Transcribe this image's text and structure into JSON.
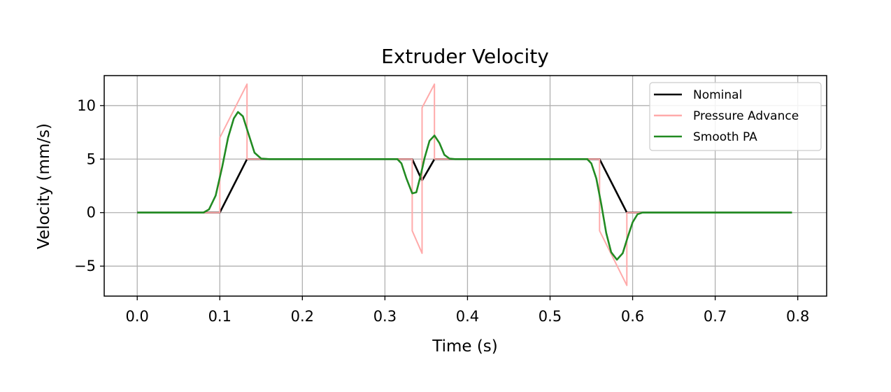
{
  "chart_data": {
    "type": "line",
    "title": "Extruder Velocity",
    "xlabel": "Time (s)",
    "ylabel": "Velocity (mm/s)",
    "xlim": [
      -0.04,
      0.835
    ],
    "ylim": [
      -7.8,
      12.8
    ],
    "xticks": [
      0.0,
      0.1,
      0.2,
      0.3,
      0.4,
      0.5,
      0.6,
      0.7,
      0.8
    ],
    "xtick_labels": [
      "0.0",
      "0.1",
      "0.2",
      "0.3",
      "0.4",
      "0.5",
      "0.6",
      "0.7",
      "0.8"
    ],
    "yticks": [
      -5,
      0,
      5,
      10
    ],
    "ytick_labels": [
      "−5",
      "0",
      "5",
      "10"
    ],
    "grid": true,
    "legend_position": "top-right",
    "series": [
      {
        "name": "Nominal",
        "color": "#000000",
        "points": [
          [
            0.0,
            0
          ],
          [
            0.1,
            0
          ],
          [
            0.133,
            5
          ],
          [
            0.333,
            5
          ],
          [
            0.345,
            3
          ],
          [
            0.36,
            5
          ],
          [
            0.56,
            5
          ],
          [
            0.593,
            0
          ],
          [
            0.793,
            0
          ]
        ]
      },
      {
        "name": "Pressure Advance",
        "color": "#ffaaaa",
        "points": [
          [
            0.0,
            0
          ],
          [
            0.1,
            0
          ],
          [
            0.1,
            7
          ],
          [
            0.133,
            12
          ],
          [
            0.133,
            5
          ],
          [
            0.333,
            5
          ],
          [
            0.333,
            -1.7
          ],
          [
            0.345,
            -3.8
          ],
          [
            0.345,
            9.8
          ],
          [
            0.36,
            12
          ],
          [
            0.36,
            5
          ],
          [
            0.56,
            5
          ],
          [
            0.56,
            -1.7
          ],
          [
            0.593,
            -6.8
          ],
          [
            0.593,
            0
          ],
          [
            0.793,
            0
          ]
        ]
      },
      {
        "name": "Smooth PA",
        "color": "#228b22",
        "points": [
          [
            0.0,
            0
          ],
          [
            0.08,
            0
          ],
          [
            0.087,
            0.3
          ],
          [
            0.095,
            1.6
          ],
          [
            0.103,
            4.3
          ],
          [
            0.11,
            7.0
          ],
          [
            0.117,
            8.8
          ],
          [
            0.122,
            9.4
          ],
          [
            0.128,
            9.0
          ],
          [
            0.135,
            7.3
          ],
          [
            0.142,
            5.6
          ],
          [
            0.15,
            5.05
          ],
          [
            0.16,
            5
          ],
          [
            0.315,
            5
          ],
          [
            0.32,
            4.6
          ],
          [
            0.326,
            3.2
          ],
          [
            0.333,
            1.8
          ],
          [
            0.338,
            1.9
          ],
          [
            0.343,
            3.4
          ],
          [
            0.348,
            5.1
          ],
          [
            0.354,
            6.7
          ],
          [
            0.36,
            7.2
          ],
          [
            0.366,
            6.5
          ],
          [
            0.372,
            5.4
          ],
          [
            0.378,
            5.05
          ],
          [
            0.385,
            5
          ],
          [
            0.545,
            5
          ],
          [
            0.55,
            4.6
          ],
          [
            0.556,
            3.2
          ],
          [
            0.562,
            0.8
          ],
          [
            0.568,
            -1.9
          ],
          [
            0.574,
            -3.7
          ],
          [
            0.581,
            -4.4
          ],
          [
            0.588,
            -3.8
          ],
          [
            0.594,
            -2.3
          ],
          [
            0.6,
            -0.9
          ],
          [
            0.606,
            -0.15
          ],
          [
            0.612,
            0
          ],
          [
            0.793,
            0
          ]
        ]
      }
    ]
  }
}
